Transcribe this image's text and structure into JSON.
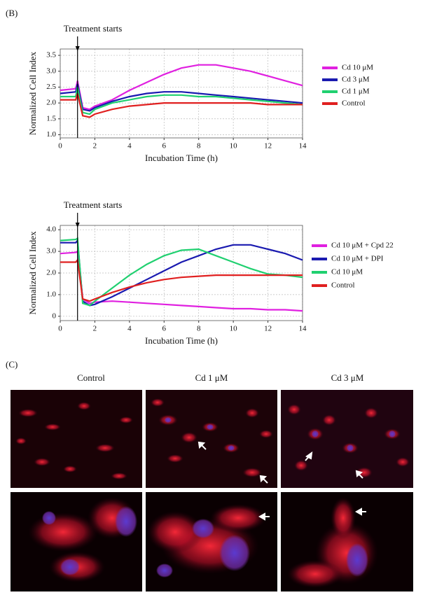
{
  "panel_b_label": "(B)",
  "chart_data": [
    {
      "type": "line",
      "xlabel": "Incubation Time (h)",
      "ylabel": "Normalized Cell Index",
      "annotation": {
        "text": "Treatment starts",
        "x": 1
      },
      "xlim": [
        0,
        14
      ],
      "xticks": [
        0,
        2,
        4,
        6,
        8,
        10,
        12,
        14
      ],
      "ylim": [
        0.9,
        3.7
      ],
      "yticks": [
        {
          "value": 1.0,
          "label": "1.0"
        },
        1.5,
        {
          "value": 2.0,
          "label": "2.0"
        },
        2.5,
        {
          "value": 3.0,
          "label": "3.0"
        },
        3.5
      ],
      "grid": true,
      "x": [
        0,
        0.9,
        1,
        1.3,
        1.7,
        2,
        3,
        4,
        5,
        6,
        7,
        8,
        9,
        10,
        11,
        12,
        13,
        14
      ],
      "series": [
        {
          "name": "Cd 10 μM",
          "color": "#e020e0",
          "values": [
            2.4,
            2.45,
            2.7,
            1.85,
            1.8,
            1.9,
            2.1,
            2.4,
            2.65,
            2.9,
            3.1,
            3.2,
            3.2,
            3.1,
            3.0,
            2.85,
            2.7,
            2.55
          ]
        },
        {
          "name": "Cd 3 μM",
          "color": "#1a1ab0",
          "values": [
            2.3,
            2.35,
            2.6,
            1.8,
            1.75,
            1.85,
            2.05,
            2.2,
            2.3,
            2.35,
            2.35,
            2.3,
            2.25,
            2.2,
            2.15,
            2.1,
            2.05,
            2.0
          ]
        },
        {
          "name": "Cd 1 μM",
          "color": "#20d070",
          "values": [
            2.2,
            2.2,
            2.5,
            1.7,
            1.65,
            1.8,
            2.0,
            2.1,
            2.2,
            2.25,
            2.25,
            2.2,
            2.2,
            2.15,
            2.1,
            2.05,
            2.0,
            1.95
          ]
        },
        {
          "name": "Control",
          "color": "#e02020",
          "values": [
            2.1,
            2.1,
            2.3,
            1.6,
            1.55,
            1.65,
            1.8,
            1.9,
            1.95,
            2.0,
            2.0,
            2.0,
            2.0,
            2.0,
            2.0,
            1.95,
            1.95,
            1.95
          ]
        }
      ]
    },
    {
      "type": "line",
      "xlabel": "Incubation Time (h)",
      "ylabel": "Normalized Cell Index",
      "annotation": {
        "text": "Treatment starts",
        "x": 1
      },
      "xlim": [
        0,
        14
      ],
      "xticks": [
        0,
        2,
        4,
        6,
        8,
        10,
        12,
        14
      ],
      "ylim": [
        -0.2,
        4.2
      ],
      "yticks": [
        0,
        {
          "value": 1.0,
          "label": "1.0"
        },
        {
          "value": 2.0,
          "label": "2.0"
        },
        {
          "value": 3.0,
          "label": "3.0"
        },
        {
          "value": 4.0,
          "label": "4.0"
        }
      ],
      "grid": true,
      "x": [
        0,
        0.9,
        1,
        1.3,
        1.7,
        2,
        3,
        4,
        5,
        6,
        7,
        8,
        9,
        10,
        11,
        12,
        13,
        14
      ],
      "series": [
        {
          "name": "Cd 10 μM + Cpd 22",
          "color": "#e020e0",
          "values": [
            2.9,
            2.95,
            3.0,
            0.8,
            0.6,
            0.65,
            0.7,
            0.65,
            0.6,
            0.55,
            0.5,
            0.45,
            0.4,
            0.35,
            0.35,
            0.3,
            0.3,
            0.25
          ]
        },
        {
          "name": "Cd 10 μM + DPI",
          "color": "#1a1ab0",
          "values": [
            3.4,
            3.4,
            3.5,
            0.7,
            0.5,
            0.55,
            0.9,
            1.3,
            1.7,
            2.1,
            2.5,
            2.8,
            3.1,
            3.3,
            3.3,
            3.1,
            2.9,
            2.6
          ]
        },
        {
          "name": "Cd 10 μM",
          "color": "#20d070",
          "values": [
            3.5,
            3.55,
            3.6,
            0.6,
            0.5,
            0.7,
            1.3,
            1.9,
            2.4,
            2.8,
            3.05,
            3.1,
            2.8,
            2.5,
            2.2,
            1.95,
            1.9,
            1.8
          ]
        },
        {
          "name": "Control",
          "color": "#e02020",
          "values": [
            2.5,
            2.5,
            2.6,
            0.8,
            0.7,
            0.8,
            1.1,
            1.35,
            1.55,
            1.7,
            1.8,
            1.85,
            1.9,
            1.9,
            1.9,
            1.9,
            1.9,
            1.9
          ]
        }
      ]
    }
  ],
  "panel_c": {
    "label": "(C)",
    "columns": [
      "Control",
      "Cd 1 μM",
      "Cd 3 μM"
    ]
  }
}
